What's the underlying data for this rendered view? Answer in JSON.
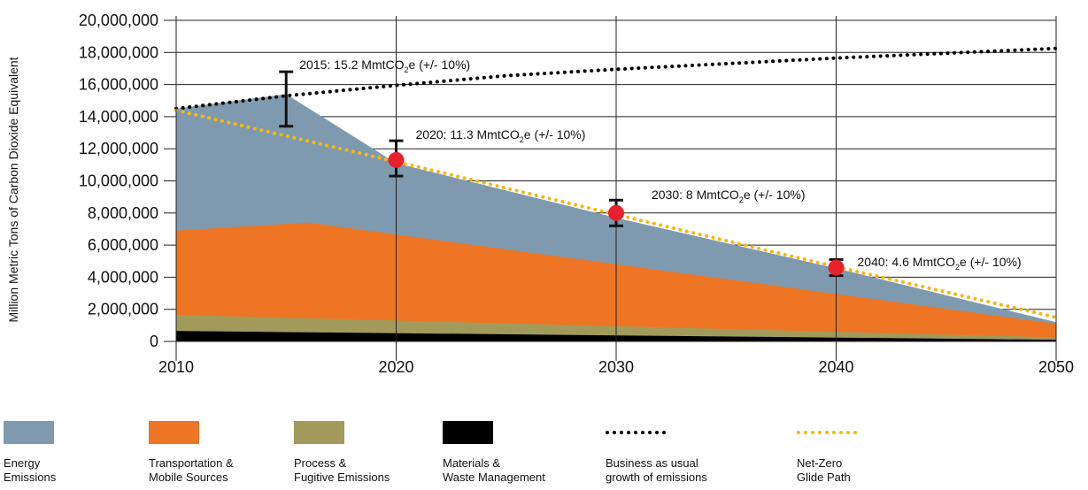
{
  "chart_data": {
    "type": "area",
    "ylabel": "Million Metric Tons of Carbon Dioxide Equivalent",
    "xlim": [
      2010,
      2050
    ],
    "ylim": [
      0,
      20000000
    ],
    "x_ticks": [
      "2010",
      "2020",
      "2030",
      "2040",
      "2050"
    ],
    "y_ticks": [
      "0",
      "2,000,000",
      "4,000,000",
      "6,000,000",
      "8,000,000",
      "10,000,000",
      "12,000,000",
      "14,000,000",
      "16,000,000",
      "18,000,000",
      "20,000,000"
    ],
    "grid": "horizontal",
    "stacked_series": [
      {
        "name": "Materials & Waste Management",
        "color": "#000000",
        "x": [
          2010,
          2050
        ],
        "top": [
          650000,
          100000
        ]
      },
      {
        "name": "Process & Fugitive Emissions",
        "color": "#a29a5b",
        "x": [
          2010,
          2050
        ],
        "top": [
          1650000,
          250000
        ]
      },
      {
        "name": "Transportation & Mobile Sources",
        "color": "#ee7523",
        "x": [
          2010,
          2016,
          2050
        ],
        "top": [
          6900000,
          7400000,
          1100000
        ]
      },
      {
        "name": "Energy Emissions",
        "color": "#7f9aae",
        "x": [
          2010,
          2015,
          2020,
          2030,
          2040,
          2050
        ],
        "top": [
          14500000,
          15400000,
          11100000,
          7700000,
          4550000,
          1200000
        ]
      }
    ],
    "lines": [
      {
        "name": "Business as usual growth of emissions",
        "color": "#000000",
        "style": "dotted",
        "x": [
          2010,
          2015,
          2020,
          2025,
          2030,
          2035,
          2040,
          2045,
          2050
        ],
        "y": [
          14500000,
          15300000,
          15950000,
          16550000,
          16950000,
          17300000,
          17650000,
          17950000,
          18250000
        ]
      },
      {
        "name": "Net-Zero Glide Path",
        "color": "#f5b712",
        "style": "dotted",
        "x": [
          2010,
          2020,
          2030,
          2040,
          2050
        ],
        "y": [
          14400000,
          11200000,
          7900000,
          4650000,
          1500000
        ]
      }
    ],
    "targets": [
      {
        "year": 2015,
        "value": 15200000,
        "low": 13400000,
        "high": 16800000,
        "marker": false,
        "label": "2015: 15.2 MmtCO",
        "sub": "2",
        "suffix": "e  (+/- 10%)"
      },
      {
        "year": 2020,
        "value": 11300000,
        "low": 10300000,
        "high": 12500000,
        "marker": true,
        "label": "2020: 11.3 MmtCO",
        "sub": "2",
        "suffix": "e  (+/- 10%)"
      },
      {
        "year": 2030,
        "value": 8000000,
        "low": 7200000,
        "high": 8800000,
        "marker": true,
        "label": "2030: 8 MmtCO",
        "sub": "2",
        "suffix": "e  (+/- 10%)"
      },
      {
        "year": 2040,
        "value": 4600000,
        "low": 4100000,
        "high": 5100000,
        "marker": true,
        "label": "2040: 4.6 MmtCO",
        "sub": "2",
        "suffix": "e  (+/- 10%)"
      }
    ],
    "marker_color": "#e8202a"
  },
  "legend": [
    {
      "kind": "swatch",
      "color": "#7f9aae",
      "line1": "Energy",
      "line2": "Emissions"
    },
    {
      "kind": "swatch",
      "color": "#ee7523",
      "line1": "Transportation &",
      "line2": "Mobile Sources"
    },
    {
      "kind": "swatch",
      "color": "#a29a5b",
      "line1": "Process &",
      "line2": "Fugitive Emissions"
    },
    {
      "kind": "swatch",
      "color": "#000000",
      "line1": "Materials &",
      "line2": "Waste Management"
    },
    {
      "kind": "dots",
      "color": "#000000",
      "line1": "Business as usual",
      "line2": "growth of emissions"
    },
    {
      "kind": "dots",
      "color": "#f5b712",
      "line1": "Net-Zero",
      "line2": "Glide Path"
    }
  ]
}
